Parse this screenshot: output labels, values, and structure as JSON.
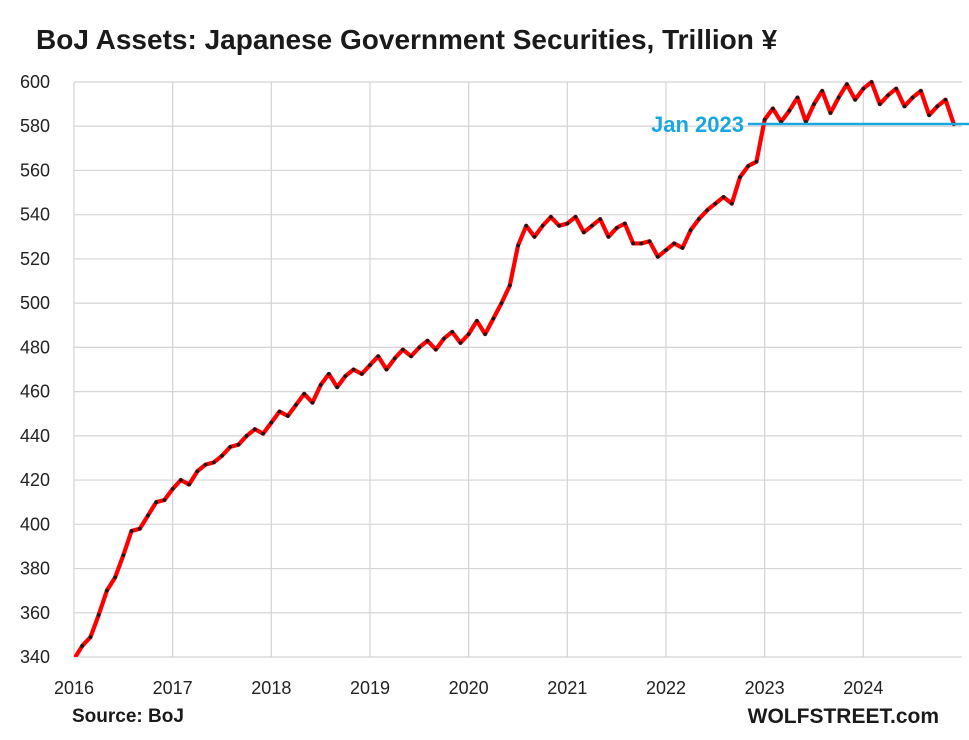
{
  "chart_data": {
    "type": "line",
    "title": "BoJ Assets: Japanese Government Securities, Trillion ¥",
    "source": "Source: BoJ",
    "brand": "WOLFSTREET.com",
    "xlabel": "",
    "ylabel": "",
    "ylim": [
      340,
      600
    ],
    "yticks": [
      340,
      360,
      380,
      400,
      420,
      440,
      460,
      480,
      500,
      520,
      540,
      560,
      580,
      600
    ],
    "xlim": [
      2016,
      2025
    ],
    "xticks": [
      2016,
      2017,
      2018,
      2019,
      2020,
      2021,
      2022,
      2023,
      2024
    ],
    "grid": true,
    "line_color": "#ff0000",
    "marker_color": "#1a1a1a",
    "reference_line": {
      "label": "Jan 2023",
      "value": 581,
      "color": "#1aa7e0",
      "from_x": 2023.0
    },
    "series": [
      {
        "x": [
          2016.0,
          2016.083,
          2016.167,
          2016.25,
          2016.333,
          2016.417,
          2016.5,
          2016.583,
          2016.667,
          2016.75,
          2016.833,
          2016.917,
          2017.0,
          2017.083,
          2017.167,
          2017.25,
          2017.333,
          2017.417,
          2017.5,
          2017.583,
          2017.667,
          2017.75,
          2017.833,
          2017.917,
          2018.0,
          2018.083,
          2018.167,
          2018.25,
          2018.333,
          2018.417,
          2018.5,
          2018.583,
          2018.667,
          2018.75,
          2018.833,
          2018.917,
          2019.0,
          2019.083,
          2019.167,
          2019.25,
          2019.333,
          2019.417,
          2019.5,
          2019.583,
          2019.667,
          2019.75,
          2019.833,
          2019.917,
          2020.0,
          2020.083,
          2020.167,
          2020.25,
          2020.333,
          2020.417,
          2020.5,
          2020.583,
          2020.667,
          2020.75,
          2020.833,
          2020.917,
          2021.0,
          2021.083,
          2021.167,
          2021.25,
          2021.333,
          2021.417,
          2021.5,
          2021.583,
          2021.667,
          2021.75,
          2021.833,
          2021.917,
          2022.0,
          2022.083,
          2022.167,
          2022.25,
          2022.333,
          2022.417,
          2022.5,
          2022.583,
          2022.667,
          2022.75,
          2022.833,
          2022.917,
          2023.0,
          2023.083,
          2023.167,
          2023.25,
          2023.333,
          2023.417,
          2023.5,
          2023.583,
          2023.667,
          2023.75,
          2023.833,
          2023.917,
          2024.0,
          2024.083,
          2024.167,
          2024.25,
          2024.333,
          2024.417,
          2024.5,
          2024.583,
          2024.667,
          2024.75,
          2024.833,
          2024.917
        ],
        "values": [
          339,
          345,
          349,
          359,
          370,
          376,
          386,
          397,
          398,
          404,
          410,
          411,
          416,
          420,
          418,
          424,
          427,
          428,
          431,
          435,
          436,
          440,
          443,
          441,
          446,
          451,
          449,
          454,
          459,
          455,
          463,
          468,
          462,
          467,
          470,
          468,
          472,
          476,
          470,
          475,
          479,
          476,
          480,
          483,
          479,
          484,
          487,
          482,
          486,
          492,
          486,
          493,
          500,
          508,
          526,
          535,
          530,
          535,
          539,
          535,
          536,
          539,
          532,
          535,
          538,
          530,
          534,
          536,
          527,
          527,
          528,
          521,
          524,
          527,
          525,
          533,
          538,
          542,
          545,
          548,
          545,
          557,
          562,
          564,
          583,
          588,
          582,
          587,
          593,
          582,
          590,
          596,
          586,
          593,
          599,
          592,
          597,
          600,
          590,
          594,
          597,
          589,
          593,
          596,
          585,
          589,
          592,
          581
        ]
      }
    ]
  }
}
